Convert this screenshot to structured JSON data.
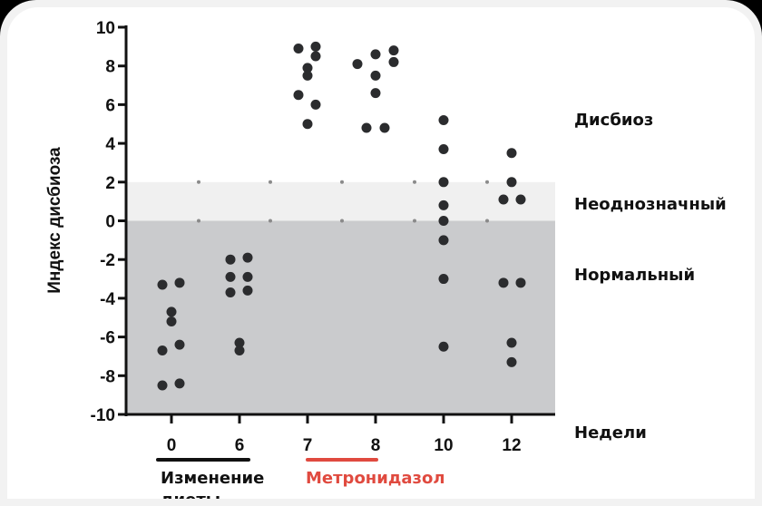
{
  "chart_data": {
    "type": "scatter",
    "title": "",
    "xlabel": "Недели",
    "ylabel": "Индекс дисбиоза",
    "ylim": [
      -10,
      10
    ],
    "yticks": [
      10,
      8,
      6,
      4,
      2,
      0,
      -2,
      -4,
      -6,
      -8,
      -10
    ],
    "categories": [
      "0",
      "6",
      "7",
      "8",
      "10",
      "12"
    ],
    "grid": false,
    "zones": [
      {
        "label": "Дисбиоз",
        "from": 2,
        "to": 10,
        "color": "#ffffff"
      },
      {
        "label": "Неоднозначный",
        "from": 0,
        "to": 2,
        "color": "#f0f0f0"
      },
      {
        "label": "Нормальный",
        "from": -10,
        "to": 0,
        "color": "#cacbcd"
      }
    ],
    "series": [
      {
        "week": "0",
        "values": [
          -3.3,
          -3.2,
          -4.7,
          -5.2,
          -6.4,
          -6.7,
          -8.5,
          -8.4
        ]
      },
      {
        "week": "6",
        "values": [
          -2.0,
          -1.9,
          -2.9,
          -2.9,
          -3.7,
          -3.6,
          -6.3,
          -6.7
        ]
      },
      {
        "week": "7",
        "values": [
          8.9,
          9.0,
          8.5,
          7.9,
          7.5,
          6.5,
          6.0,
          5.0
        ]
      },
      {
        "week": "8",
        "values": [
          8.1,
          8.6,
          8.8,
          8.2,
          7.5,
          6.6,
          4.8,
          4.8
        ]
      },
      {
        "week": "10",
        "values": [
          5.2,
          3.7,
          2.0,
          0.8,
          0.0,
          -1.0,
          -3.0,
          -6.5
        ]
      },
      {
        "week": "12",
        "values": [
          3.5,
          2.0,
          1.1,
          1.1,
          -3.2,
          -3.2,
          -6.3,
          -7.3
        ]
      }
    ],
    "annotations": [
      {
        "text": "Изменение диеты",
        "span": [
          "0",
          "6"
        ],
        "color": "#111111"
      },
      {
        "text": "Метронидазол",
        "span": [
          "7",
          "8"
        ],
        "color": "#e04a3f"
      }
    ]
  },
  "labels": {
    "y_title": "Индекс дисбиоза",
    "x_title": "Недели",
    "zone_dysbiosis": "Дисбиоз",
    "zone_equivocal": "Неоднозначный",
    "zone_normal": "Нормальный",
    "annot_diet": "Изменение",
    "annot_diet_2": "диеты",
    "annot_metro": "Метронидазол"
  },
  "colors": {
    "dot": "#2b2c2e",
    "axis": "#111111",
    "diet_bar": "#111111",
    "metro_bar": "#e04a3f",
    "zone_equivocal": "#f0f0f0",
    "zone_normal": "#cacbcd"
  }
}
